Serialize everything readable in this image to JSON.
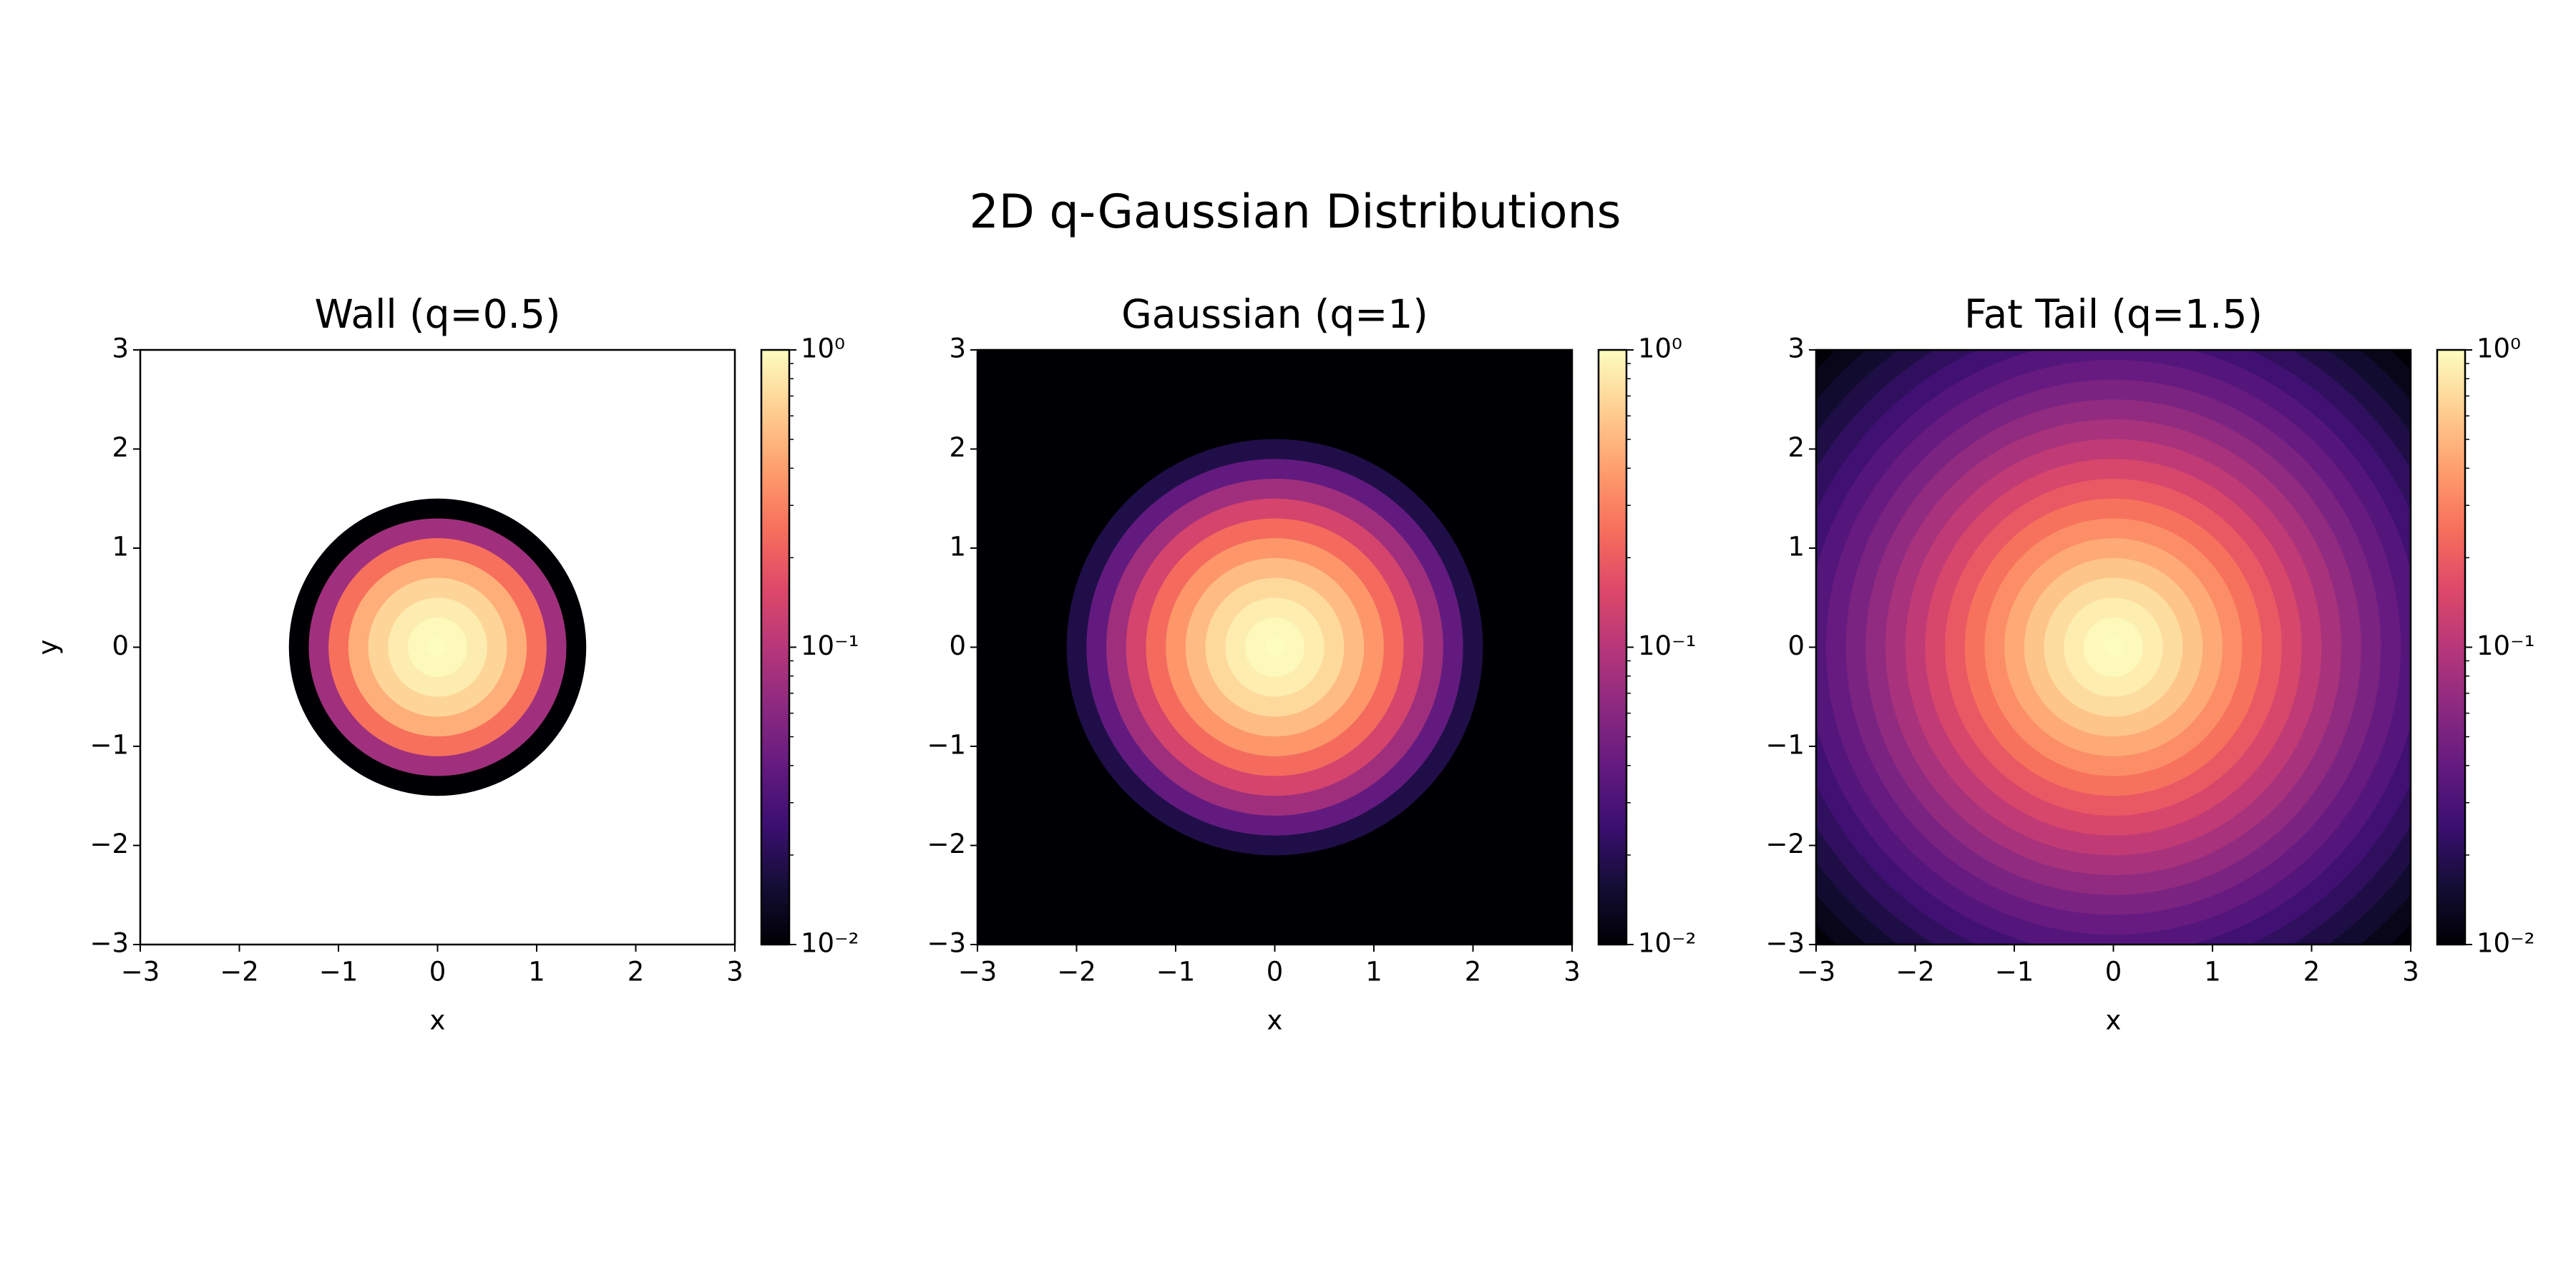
{
  "title": "2D q-Gaussian Distributions",
  "chart_data": [
    {
      "type": "heatmap",
      "title": "Wall (q=0.5)",
      "xlabel": "x",
      "ylabel": "y",
      "r": [
        0,
        0.2,
        0.4,
        0.6,
        0.8,
        1.0,
        1.2,
        1.4,
        1.6,
        1.8,
        2.0,
        2.2,
        2.4,
        2.6,
        2.8,
        3.0,
        3.2,
        3.4,
        3.6,
        3.8,
        4.0,
        4.2,
        4.4
      ],
      "values": [
        1,
        0.9604,
        0.8464,
        0.6724,
        0.4624,
        0.25,
        0.0784,
        0.0004,
        null,
        null,
        null,
        null,
        null,
        null,
        null,
        null,
        null,
        null,
        null,
        null,
        null,
        null,
        null
      ],
      "xlim": [
        -3,
        3
      ],
      "ylim": [
        -3,
        3
      ],
      "xticks": [
        {
          "value": -3,
          "label": "−3"
        },
        {
          "value": -2,
          "label": "−2"
        },
        {
          "value": -1,
          "label": "−1"
        },
        0,
        1,
        2,
        3
      ],
      "yticks": [
        {
          "value": -3,
          "label": "−3"
        },
        {
          "value": -2,
          "label": "−2"
        },
        {
          "value": -1,
          "label": "−1"
        },
        0,
        1,
        2,
        3
      ],
      "log_color": true,
      "clim": [
        0.01,
        1
      ],
      "cticks": [
        {
          "value": 0.01,
          "label": "10⁻²"
        },
        {
          "value": 0.1,
          "label": "10⁻¹"
        },
        {
          "value": 1,
          "label": "10⁰"
        }
      ],
      "cticks_minor": [
        0.02,
        0.03,
        0.04,
        0.05,
        0.06,
        0.07,
        0.08,
        0.09,
        0.2,
        0.3,
        0.4,
        0.5,
        0.6,
        0.7,
        0.8,
        0.9
      ],
      "colormap": [
        "#000004",
        "#140e36",
        "#3b0f70",
        "#641a80",
        "#8c2981",
        "#b73779",
        "#de4968",
        "#f7705c",
        "#fe9f6d",
        "#fecf92",
        "#fcfdbf"
      ]
    },
    {
      "type": "heatmap",
      "title": "Gaussian (q=1)",
      "xlabel": "x",
      "r": [
        0,
        0.2,
        0.4,
        0.6,
        0.8,
        1.0,
        1.2,
        1.4,
        1.6,
        1.8,
        2.0,
        2.2,
        2.4,
        2.6,
        2.8,
        3.0,
        3.2,
        3.4,
        3.6,
        3.8,
        4.0,
        4.2,
        4.4
      ],
      "values": [
        1,
        0.9608,
        0.8521,
        0.6977,
        0.5273,
        0.3679,
        0.2369,
        0.1409,
        0.0773,
        0.0392,
        0.0183,
        0.0079,
        0.00315,
        0.00116,
        0.00039,
        0.000123,
        3.6e-05,
        9.6e-06,
        2.4e-06,
        5.4e-07,
        1.1e-07,
        2.2e-08,
        3.9e-09
      ],
      "xlim": [
        -3,
        3
      ],
      "ylim": [
        -3,
        3
      ],
      "xticks": [
        {
          "value": -3,
          "label": "−3"
        },
        {
          "value": -2,
          "label": "−2"
        },
        {
          "value": -1,
          "label": "−1"
        },
        0,
        1,
        2,
        3
      ],
      "yticks": [
        {
          "value": -3,
          "label": "−3"
        },
        {
          "value": -2,
          "label": "−2"
        },
        {
          "value": -1,
          "label": "−1"
        },
        0,
        1,
        2,
        3
      ],
      "log_color": true,
      "clim": [
        0.01,
        1
      ],
      "cticks": [
        {
          "value": 0.01,
          "label": "10⁻²"
        },
        {
          "value": 0.1,
          "label": "10⁻¹"
        },
        {
          "value": 1,
          "label": "10⁰"
        }
      ],
      "cticks_minor": [
        0.02,
        0.03,
        0.04,
        0.05,
        0.06,
        0.07,
        0.08,
        0.09,
        0.2,
        0.3,
        0.4,
        0.5,
        0.6,
        0.7,
        0.8,
        0.9
      ],
      "colormap": [
        "#000004",
        "#140e36",
        "#3b0f70",
        "#641a80",
        "#8c2981",
        "#b73779",
        "#de4968",
        "#f7705c",
        "#fe9f6d",
        "#fecf92",
        "#fcfdbf"
      ]
    },
    {
      "type": "heatmap",
      "title": "Fat Tail (q=1.5)",
      "xlabel": "x",
      "r": [
        0,
        0.2,
        0.4,
        0.6,
        0.8,
        1.0,
        1.2,
        1.4,
        1.6,
        1.8,
        2.0,
        2.2,
        2.4,
        2.6,
        2.8,
        3.0,
        3.2,
        3.4,
        3.6,
        3.8,
        4.0,
        4.2,
        4.4
      ],
      "values": [
        1,
        0.9612,
        0.8573,
        0.7182,
        0.5739,
        0.4444,
        0.338,
        0.2551,
        0.1924,
        0.1457,
        0.1111,
        0.0855,
        0.0664,
        0.0521,
        0.0413,
        0.0331,
        0.0267,
        0.0218,
        0.0179,
        0.0148,
        0.0123,
        0.0104,
        0.00877
      ],
      "xlim": [
        -3,
        3
      ],
      "ylim": [
        -3,
        3
      ],
      "xticks": [
        {
          "value": -3,
          "label": "−3"
        },
        {
          "value": -2,
          "label": "−2"
        },
        {
          "value": -1,
          "label": "−1"
        },
        0,
        1,
        2,
        3
      ],
      "yticks": [
        {
          "value": -3,
          "label": "−3"
        },
        {
          "value": -2,
          "label": "−2"
        },
        {
          "value": -1,
          "label": "−1"
        },
        0,
        1,
        2,
        3
      ],
      "log_color": true,
      "clim": [
        0.01,
        1
      ],
      "cticks": [
        {
          "value": 0.01,
          "label": "10⁻²"
        },
        {
          "value": 0.1,
          "label": "10⁻¹"
        },
        {
          "value": 1,
          "label": "10⁰"
        }
      ],
      "cticks_minor": [
        0.02,
        0.03,
        0.04,
        0.05,
        0.06,
        0.07,
        0.08,
        0.09,
        0.2,
        0.3,
        0.4,
        0.5,
        0.6,
        0.7,
        0.8,
        0.9
      ],
      "colormap": [
        "#000004",
        "#140e36",
        "#3b0f70",
        "#641a80",
        "#8c2981",
        "#b73779",
        "#de4968",
        "#f7705c",
        "#fe9f6d",
        "#fecf92",
        "#fcfdbf"
      ]
    }
  ]
}
